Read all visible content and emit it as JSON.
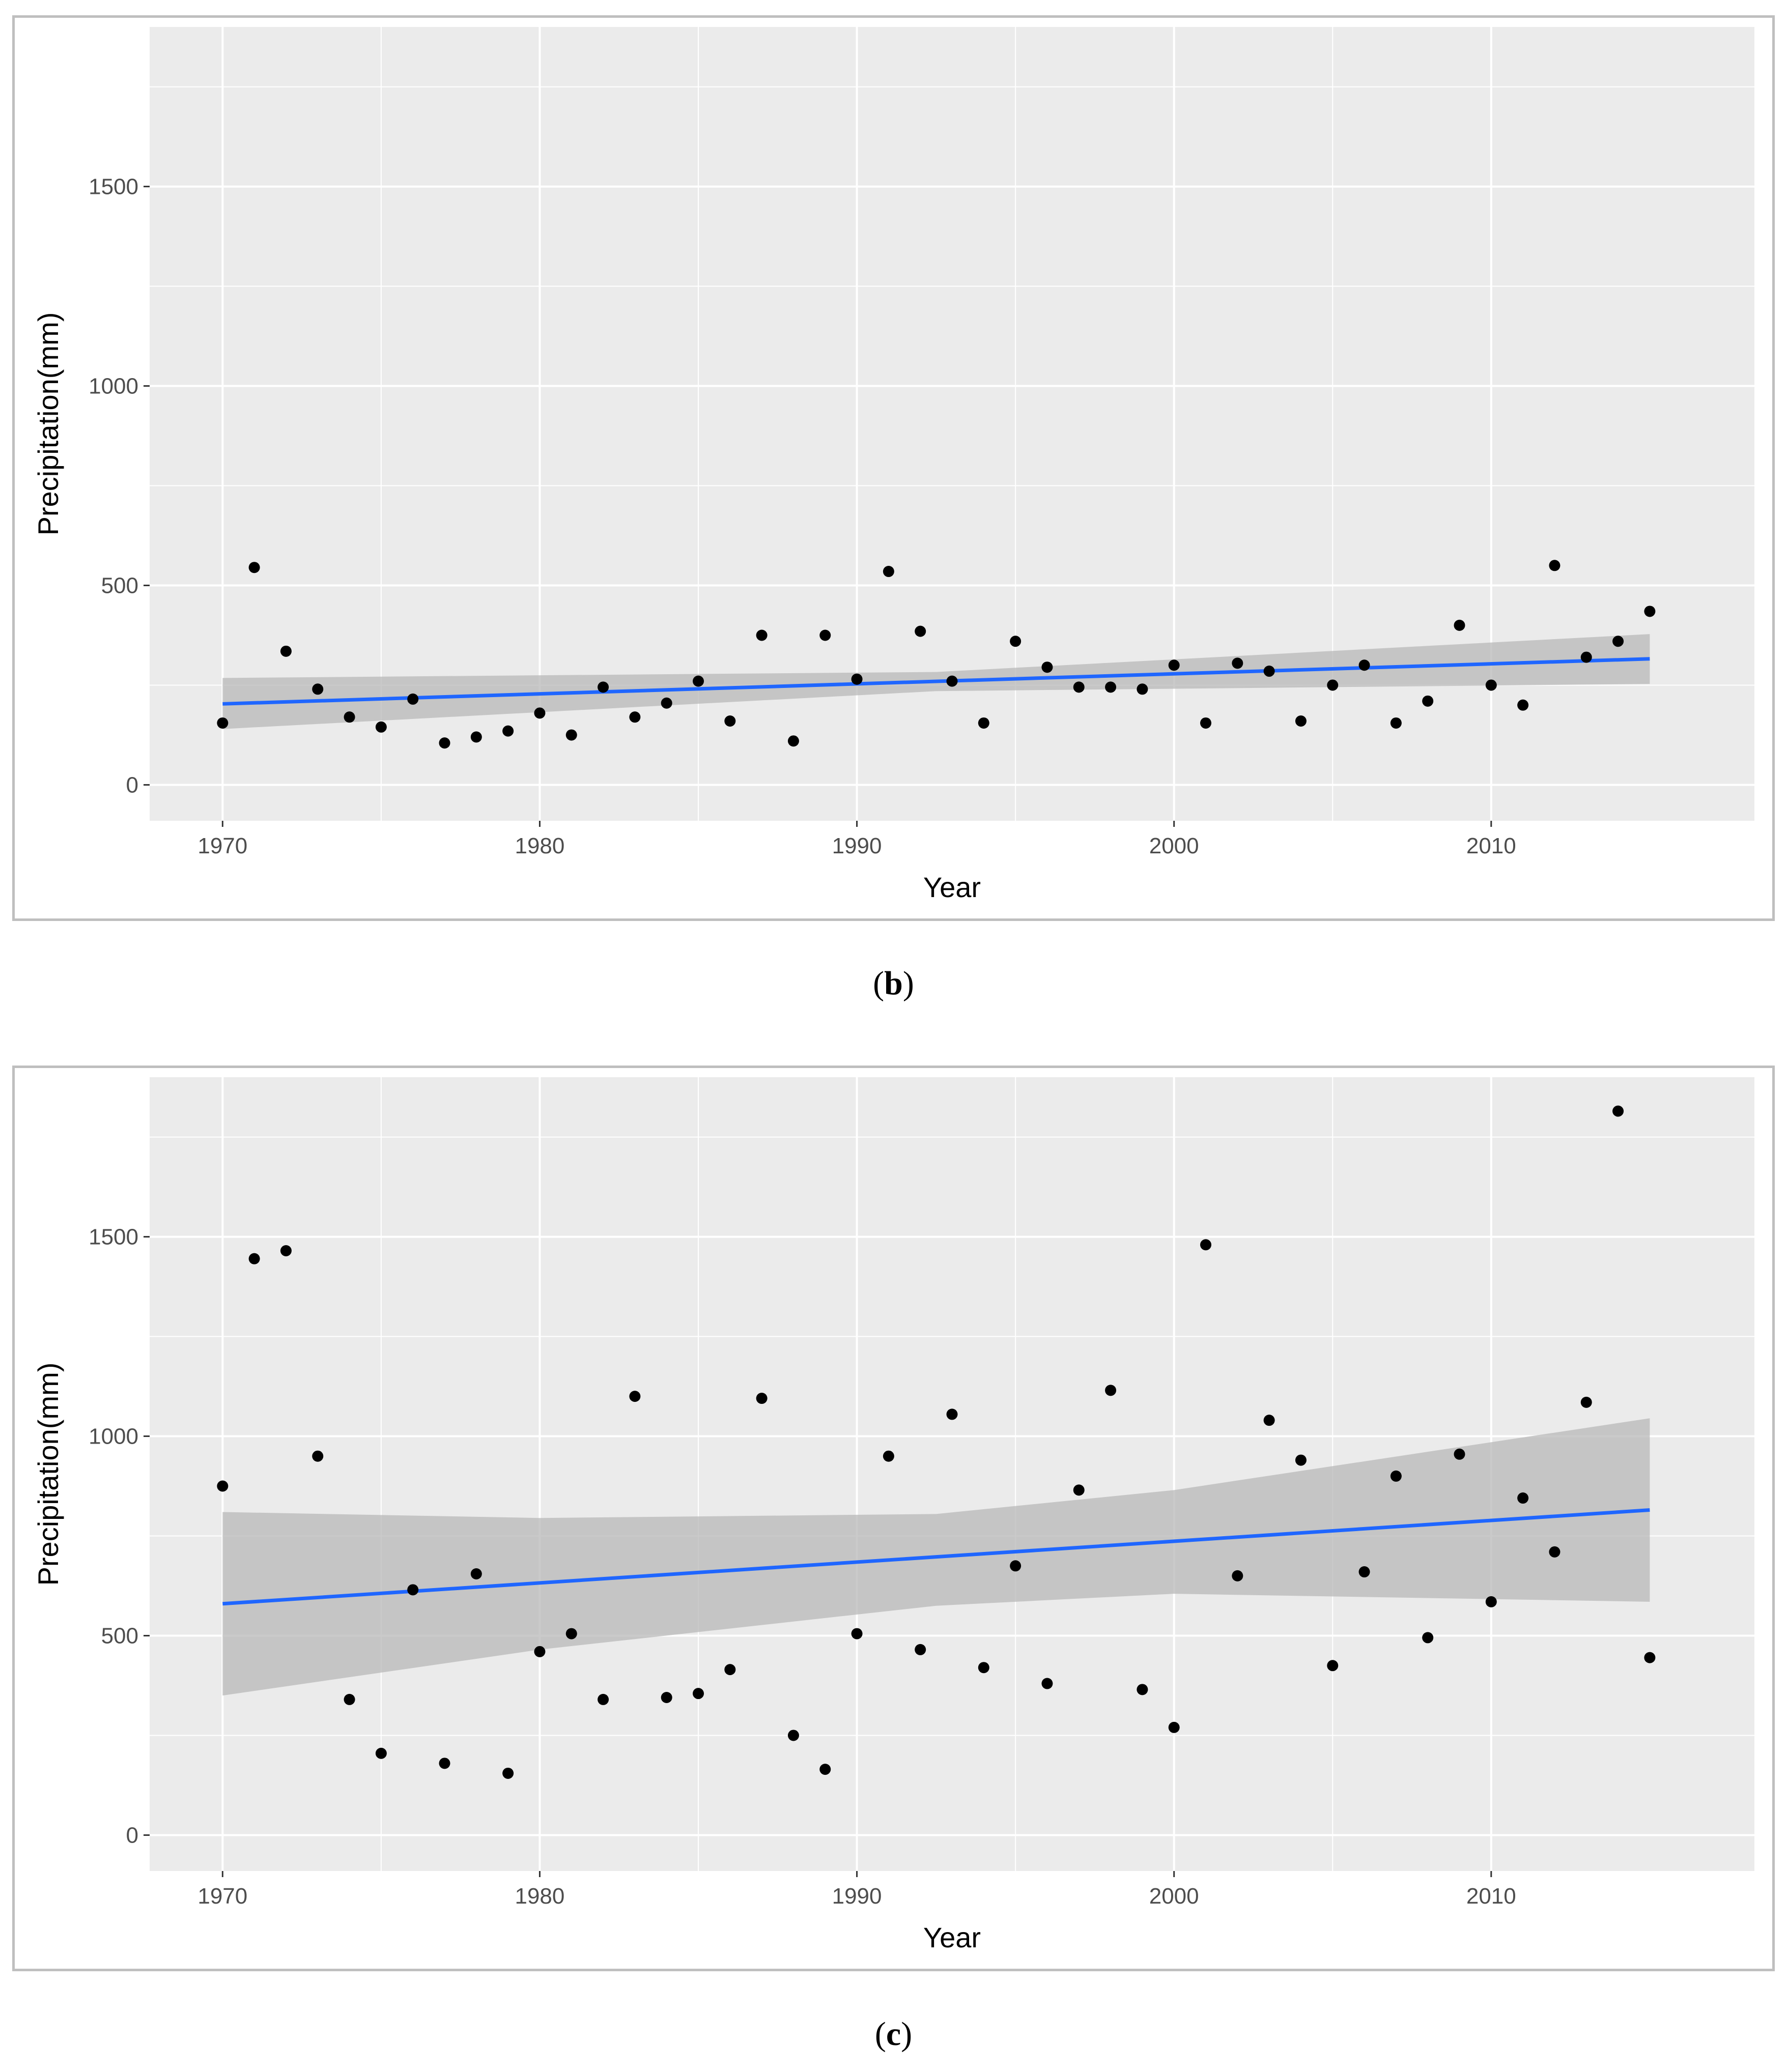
{
  "panels": [
    {
      "id": "b",
      "caption_letter": "b",
      "chart_data": {
        "type": "scatter",
        "title": "",
        "xlabel": "Year",
        "ylabel": "Precipitation(mm)",
        "xlim": [
          1967.7,
          2018.3
        ],
        "ylim": [
          -90,
          1900
        ],
        "xticks": [
          1970,
          1980,
          1990,
          2000,
          2010
        ],
        "yticks": [
          0,
          500,
          1000,
          1500
        ],
        "x": [
          1970,
          1971,
          1972,
          1973,
          1974,
          1975,
          1976,
          1977,
          1978,
          1979,
          1980,
          1981,
          1982,
          1983,
          1984,
          1985,
          1986,
          1987,
          1988,
          1989,
          1990,
          1991,
          1992,
          1993,
          1994,
          1995,
          1996,
          1997,
          1998,
          1999,
          2000,
          2001,
          2002,
          2003,
          2004,
          2005,
          2006,
          2007,
          2008,
          2009,
          2010,
          2011,
          2012,
          2013,
          2014,
          2015
        ],
        "y": [
          155,
          545,
          335,
          240,
          170,
          145,
          215,
          105,
          120,
          135,
          180,
          125,
          245,
          170,
          205,
          260,
          160,
          375,
          110,
          375,
          265,
          535,
          385,
          260,
          155,
          360,
          295,
          245,
          245,
          240,
          300,
          155,
          305,
          285,
          160,
          250,
          300,
          155,
          210,
          400,
          250,
          200,
          550,
          320,
          360,
          435
        ],
        "trend": {
          "x": [
            1970,
            2015
          ],
          "y": [
            203,
            316
          ]
        },
        "ci_lower": {
          "x": [
            1970,
            1992.5,
            2015
          ],
          "y": [
            140,
            235,
            253
          ]
        },
        "ci_upper": {
          "x": [
            1970,
            1992.5,
            2015
          ],
          "y": [
            268,
            283,
            378
          ]
        },
        "colors": {
          "panel_bg": "#ebebeb",
          "grid": "#ffffff",
          "points": "#000000",
          "trend": "#1f66ff",
          "ribbon": "#b8b8b8"
        }
      }
    },
    {
      "id": "c",
      "caption_letter": "c",
      "chart_data": {
        "type": "scatter",
        "title": "",
        "xlabel": "Year",
        "ylabel": "Precipitation(mm)",
        "xlim": [
          1967.7,
          2018.3
        ],
        "ylim": [
          -90,
          1900
        ],
        "xticks": [
          1970,
          1980,
          1990,
          2000,
          2010
        ],
        "yticks": [
          0,
          500,
          1000,
          1500
        ],
        "x": [
          1970,
          1971,
          1972,
          1973,
          1974,
          1975,
          1976,
          1977,
          1978,
          1979,
          1980,
          1981,
          1982,
          1983,
          1984,
          1985,
          1986,
          1987,
          1988,
          1989,
          1990,
          1991,
          1992,
          1993,
          1994,
          1995,
          1996,
          1997,
          1998,
          1999,
          2000,
          2001,
          2002,
          2003,
          2004,
          2005,
          2006,
          2007,
          2008,
          2009,
          2010,
          2011,
          2012,
          2013,
          2014,
          2015
        ],
        "y": [
          875,
          1445,
          1465,
          950,
          340,
          205,
          615,
          180,
          655,
          155,
          460,
          505,
          340,
          1100,
          345,
          355,
          415,
          1095,
          250,
          165,
          505,
          950,
          465,
          1055,
          420,
          675,
          380,
          865,
          1115,
          365,
          270,
          1480,
          650,
          1040,
          940,
          425,
          660,
          900,
          495,
          955,
          585,
          845,
          710,
          1085,
          1815,
          445
        ],
        "trend": {
          "x": [
            1970,
            2015
          ],
          "y": [
            580,
            815
          ]
        },
        "ci_lower": {
          "x": [
            1970,
            1980,
            1992.5,
            2000,
            2015
          ],
          "y": [
            350,
            465,
            575,
            605,
            585
          ]
        },
        "ci_upper": {
          "x": [
            1970,
            1980,
            1992.5,
            2000,
            2015
          ],
          "y": [
            810,
            795,
            805,
            865,
            1045
          ]
        },
        "colors": {
          "panel_bg": "#ebebeb",
          "grid": "#ffffff",
          "points": "#000000",
          "trend": "#1f66ff",
          "ribbon": "#b8b8b8"
        }
      }
    }
  ]
}
